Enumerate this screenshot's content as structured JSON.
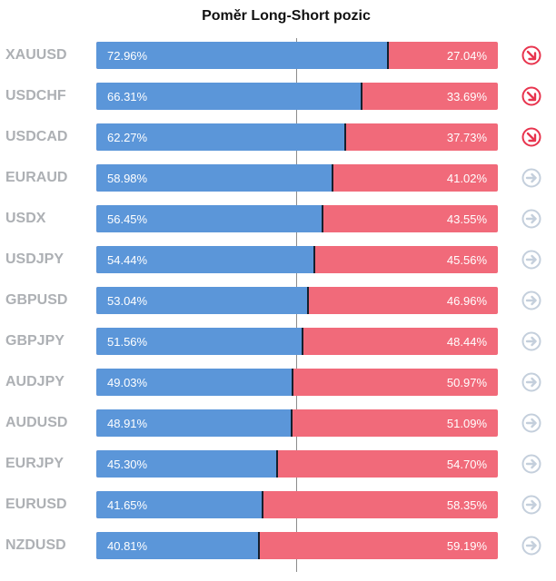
{
  "chart_data": {
    "type": "bar",
    "title": "Poměr Long-Short pozic",
    "categories": [
      "XAUUSD",
      "USDCHF",
      "USDCAD",
      "EURAUD",
      "USDX",
      "USDJPY",
      "GBPUSD",
      "GBPJPY",
      "AUDJPY",
      "AUDUSD",
      "EURJPY",
      "EURUSD",
      "NZDUSD"
    ],
    "series": [
      {
        "values": [
          72.96,
          66.31,
          62.27,
          58.98,
          56.45,
          54.44,
          53.04,
          51.56,
          49.03,
          48.91,
          45.3,
          41.65,
          40.81
        ]
      },
      {
        "values": [
          27.04,
          33.69,
          37.73,
          41.02,
          43.55,
          45.56,
          46.96,
          48.44,
          50.97,
          51.09,
          54.7,
          58.35,
          59.19
        ]
      }
    ],
    "long_labels": [
      "72.96%",
      "66.31%",
      "62.27%",
      "58.98%",
      "56.45%",
      "54.44%",
      "53.04%",
      "51.56%",
      "49.03%",
      "48.91%",
      "45.30%",
      "41.65%",
      "40.81%"
    ],
    "short_labels": [
      "27.04%",
      "33.69%",
      "37.73%",
      "41.02%",
      "43.55%",
      "45.56%",
      "46.96%",
      "48.44%",
      "50.97%",
      "51.09%",
      "54.70%",
      "58.35%",
      "59.19%"
    ],
    "trend_icons": [
      "arrow-down-right-icon",
      "arrow-down-right-icon",
      "arrow-down-right-icon",
      "arrow-right-icon",
      "arrow-right-icon",
      "arrow-right-icon",
      "arrow-right-icon",
      "arrow-right-icon",
      "arrow-right-icon",
      "arrow-right-icon",
      "arrow-right-icon",
      "arrow-right-icon",
      "arrow-right-icon"
    ],
    "stacked": true,
    "orientation": "horizontal",
    "xlim": [
      0,
      100
    ],
    "colors": {
      "long": "#5b96d9",
      "short": "#f16a7a",
      "icon_down": "#e8344e",
      "icon_neutral": "#c4cfdc"
    }
  }
}
